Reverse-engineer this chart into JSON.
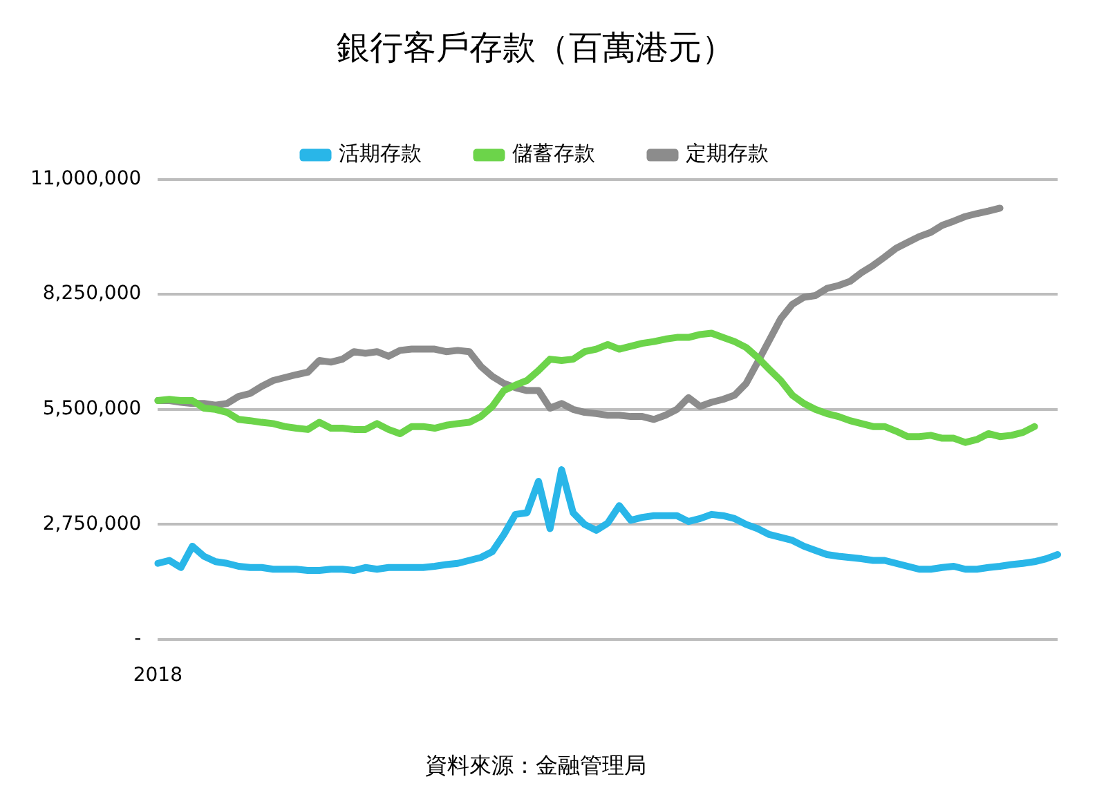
{
  "chart_data": {
    "type": "line",
    "title": "銀行客戶存款（百萬港元）",
    "legend": "top",
    "grid": "y",
    "marker": "none",
    "line_style": "solid",
    "annotations": [
      "資料來源：金融管理局"
    ],
    "categories": [
      "2018",
      null,
      null,
      null,
      null,
      null,
      null,
      null,
      null,
      null,
      null,
      null,
      null,
      null,
      null,
      null,
      null,
      null,
      null,
      null,
      null,
      null,
      null,
      null,
      null,
      null,
      null,
      null,
      null,
      null,
      null,
      null,
      null,
      null,
      null,
      null,
      null,
      null,
      null,
      null,
      null,
      null,
      null,
      null,
      null,
      null,
      null,
      null,
      null,
      null,
      null,
      null,
      null,
      null,
      null,
      null,
      null,
      null,
      null,
      null,
      null,
      null,
      null,
      null,
      null,
      null,
      null,
      null,
      null,
      null,
      null,
      null,
      null,
      null,
      null,
      null,
      null,
      null,
      null
    ],
    "ylim": [
      0,
      11000000
    ],
    "yticks": [
      {
        "value": 0,
        "label": "-"
      },
      {
        "value": 2750000,
        "label": "2,750,000"
      },
      {
        "value": 5500000,
        "label": "5,500,000"
      },
      {
        "value": 8250000,
        "label": "8,250,000"
      },
      {
        "value": 11000000,
        "label": "11,000,000"
      }
    ],
    "series": [
      {
        "name": "活期存款",
        "color": "#29b6e8",
        "values": [
          1820000,
          1890000,
          1720000,
          2230000,
          1990000,
          1860000,
          1820000,
          1750000,
          1720000,
          1720000,
          1680000,
          1680000,
          1680000,
          1650000,
          1650000,
          1680000,
          1680000,
          1650000,
          1720000,
          1680000,
          1720000,
          1720000,
          1720000,
          1720000,
          1750000,
          1790000,
          1820000,
          1890000,
          1960000,
          2100000,
          2510000,
          2990000,
          3030000,
          3780000,
          2650000,
          4060000,
          3030000,
          2750000,
          2610000,
          2780000,
          3200000,
          2850000,
          2920000,
          2960000,
          2960000,
          2960000,
          2820000,
          2890000,
          2990000,
          2960000,
          2890000,
          2750000,
          2650000,
          2510000,
          2440000,
          2370000,
          2230000,
          2130000,
          2030000,
          1990000,
          1960000,
          1930000,
          1890000,
          1890000,
          1820000,
          1750000,
          1680000,
          1680000,
          1720000,
          1750000,
          1680000,
          1680000,
          1720000,
          1750000,
          1790000,
          1820000,
          1860000,
          1930000,
          2030000
        ]
      },
      {
        "name": "儲蓄存款",
        "color": "#6cd44a",
        "values": [
          5710000,
          5740000,
          5710000,
          5710000,
          5530000,
          5500000,
          5430000,
          5260000,
          5230000,
          5190000,
          5160000,
          5090000,
          5050000,
          5020000,
          5190000,
          5050000,
          5050000,
          5020000,
          5020000,
          5160000,
          5020000,
          4920000,
          5090000,
          5090000,
          5050000,
          5120000,
          5160000,
          5190000,
          5330000,
          5570000,
          5950000,
          6080000,
          6190000,
          6430000,
          6700000,
          6670000,
          6700000,
          6880000,
          6940000,
          7050000,
          6940000,
          7010000,
          7080000,
          7120000,
          7180000,
          7220000,
          7220000,
          7290000,
          7320000,
          7220000,
          7120000,
          6980000,
          6740000,
          6460000,
          6190000,
          5840000,
          5640000,
          5500000,
          5400000,
          5330000,
          5230000,
          5160000,
          5090000,
          5090000,
          4980000,
          4850000,
          4850000,
          4880000,
          4810000,
          4810000,
          4710000,
          4780000,
          4920000,
          4850000,
          4880000,
          4950000,
          5090000,
          null,
          null
        ]
      },
      {
        "name": "定期存款",
        "color": "#8c8c8c",
        "values": [
          5710000,
          5710000,
          5670000,
          5640000,
          5640000,
          5600000,
          5640000,
          5810000,
          5880000,
          6050000,
          6190000,
          6260000,
          6330000,
          6390000,
          6670000,
          6630000,
          6700000,
          6880000,
          6840000,
          6880000,
          6770000,
          6910000,
          6940000,
          6940000,
          6940000,
          6880000,
          6910000,
          6880000,
          6530000,
          6290000,
          6120000,
          6020000,
          5950000,
          5950000,
          5530000,
          5640000,
          5500000,
          5430000,
          5400000,
          5360000,
          5360000,
          5330000,
          5330000,
          5260000,
          5360000,
          5500000,
          5780000,
          5570000,
          5670000,
          5740000,
          5840000,
          6120000,
          6630000,
          7150000,
          7670000,
          8010000,
          8180000,
          8220000,
          8390000,
          8460000,
          8560000,
          8770000,
          8940000,
          9140000,
          9350000,
          9490000,
          9630000,
          9730000,
          9900000,
          10000000,
          10110000,
          10180000,
          10240000,
          10310000,
          null,
          null,
          null,
          null,
          null
        ]
      }
    ]
  }
}
